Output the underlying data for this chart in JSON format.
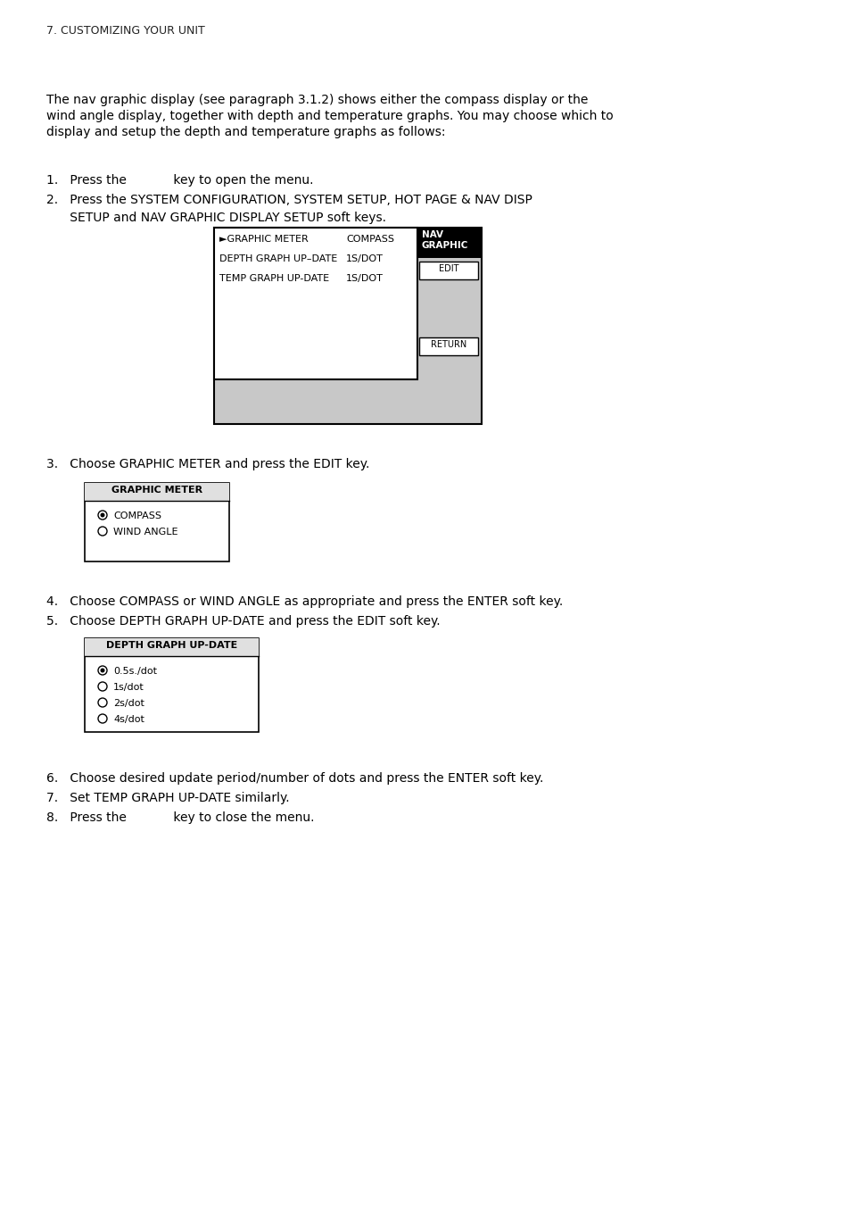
{
  "bg_color": "#ffffff",
  "header": "7. CUSTOMIZING YOUR UNIT",
  "para1_lines": [
    "The nav graphic display (see paragraph 3.1.2) shows either the compass display or the",
    "wind angle display, together with depth and temperature graphs. You may choose which to",
    "display and setup the depth and temperature graphs as follows:"
  ],
  "step1": "1.   Press the            key to open the menu.",
  "step2a": "2.   Press the SYSTEM CONFIGURATION, SYSTEM SETUP, HOT PAGE & NAV DISP",
  "step2b": "      SETUP and NAV GRAPHIC DISPLAY SETUP soft keys.",
  "diagram1": {
    "menu_items": [
      {
        "label": "►GRAPHIC METER",
        "value": "COMPASS"
      },
      {
        "label": "DEPTH GRAPH UP–DATE",
        "value": "1S/DOT"
      },
      {
        "label": "TEMP GRAPH UP-DATE",
        "value": "1S/DOT"
      }
    ]
  },
  "step3": "3.   Choose GRAPHIC METER and press the EDIT key.",
  "diagram2": {
    "title": "GRAPHIC METER",
    "items": [
      {
        "selected": true,
        "label": "COMPASS"
      },
      {
        "selected": false,
        "label": "WIND ANGLE"
      }
    ]
  },
  "step4": "4.   Choose COMPASS or WIND ANGLE as appropriate and press the ENTER soft key.",
  "step5": "5.   Choose DEPTH GRAPH UP-DATE and press the EDIT soft key.",
  "diagram3": {
    "title": "DEPTH GRAPH UP-DATE",
    "items": [
      {
        "selected": true,
        "label": "0.5s./dot"
      },
      {
        "selected": false,
        "label": "1s/dot"
      },
      {
        "selected": false,
        "label": "2s/dot"
      },
      {
        "selected": false,
        "label": "4s/dot"
      }
    ]
  },
  "step6": "6.   Choose desired update period/number of dots and press the ENTER soft key.",
  "step7": "7.   Set TEMP GRAPH UP-DATE similarly.",
  "step8": "8.   Press the            key to close the menu."
}
